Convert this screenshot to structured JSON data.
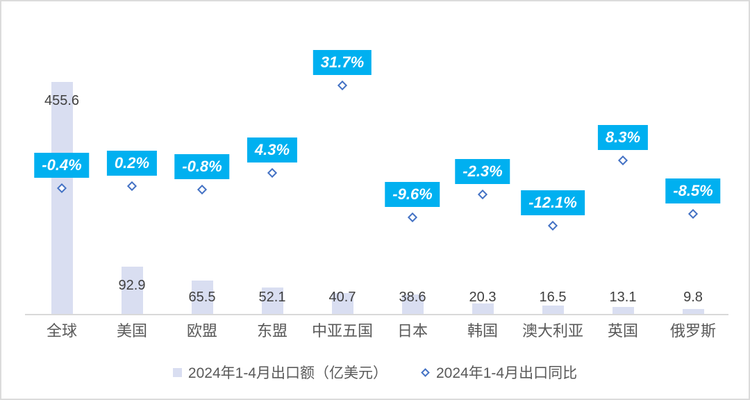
{
  "chart_data": {
    "type": "combo-bar-scatter",
    "title": "",
    "categories": [
      "全球",
      "美国",
      "欧盟",
      "东盟",
      "中亚五国",
      "日本",
      "韩国",
      "澳大利亚",
      "英国",
      "俄罗斯"
    ],
    "series": [
      {
        "name": "2024年1-4月出口额（亿美元）",
        "type": "bar",
        "unit": "亿美元",
        "values": [
          455.6,
          92.9,
          65.5,
          52.1,
          40.7,
          38.6,
          20.3,
          16.5,
          13.1,
          9.8
        ],
        "labels": [
          "455.6",
          "92.9",
          "65.5",
          "52.1",
          "40.7",
          "38.6",
          "20.3",
          "16.5",
          "13.1",
          "9.8"
        ]
      },
      {
        "name": "2024年1-4月出口同比",
        "type": "scatter",
        "unit": "%",
        "values": [
          -0.4,
          0.2,
          -0.8,
          4.3,
          31.7,
          -9.6,
          -2.3,
          -12.1,
          8.3,
          -8.5
        ],
        "labels": [
          "-0.4%",
          "0.2%",
          "-0.8%",
          "4.3%",
          "31.7%",
          "-9.6%",
          "-2.3%",
          "-12.1%",
          "8.3%",
          "-8.5%"
        ]
      }
    ],
    "legend_position": "bottom",
    "grid": false,
    "axes_visible": false,
    "colors": {
      "bar_fill": "#D9DEF1",
      "marker_outline": "#4472C4",
      "pct_label_box": "#00B0F0",
      "pct_label_text": "#FFFFFF",
      "value_label_text": "#404040",
      "category_text": "#595959",
      "axis_line": "#D9D9D9"
    }
  },
  "legend": {
    "items": [
      {
        "label": "2024年1-4月出口额（亿美元）",
        "marker": "square"
      },
      {
        "label": "2024年1-4月出口同比",
        "marker": "diamond"
      }
    ]
  }
}
